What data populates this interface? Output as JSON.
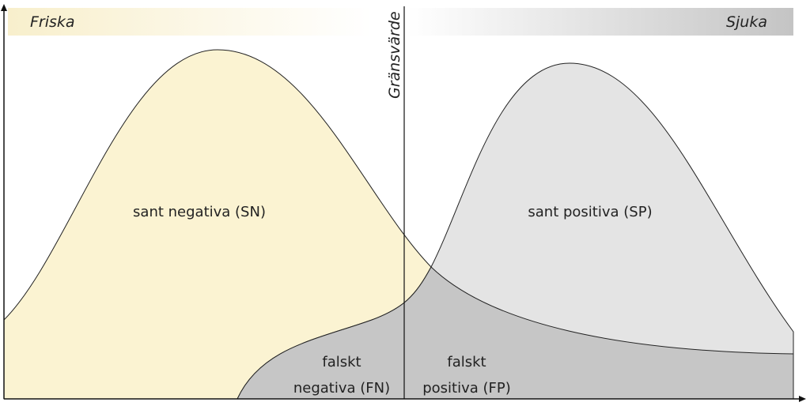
{
  "header": {
    "left": "Friska",
    "right": "Sjuka"
  },
  "threshold": "Gränsvärde",
  "regions": {
    "true_negative": [
      "sant negativa (SN)"
    ],
    "true_positive": [
      "sant positiva (SP)"
    ],
    "false_negative": [
      "falskt",
      "negativa (FN)"
    ],
    "false_positive": [
      "falskt",
      "positiva (FP)"
    ]
  }
}
